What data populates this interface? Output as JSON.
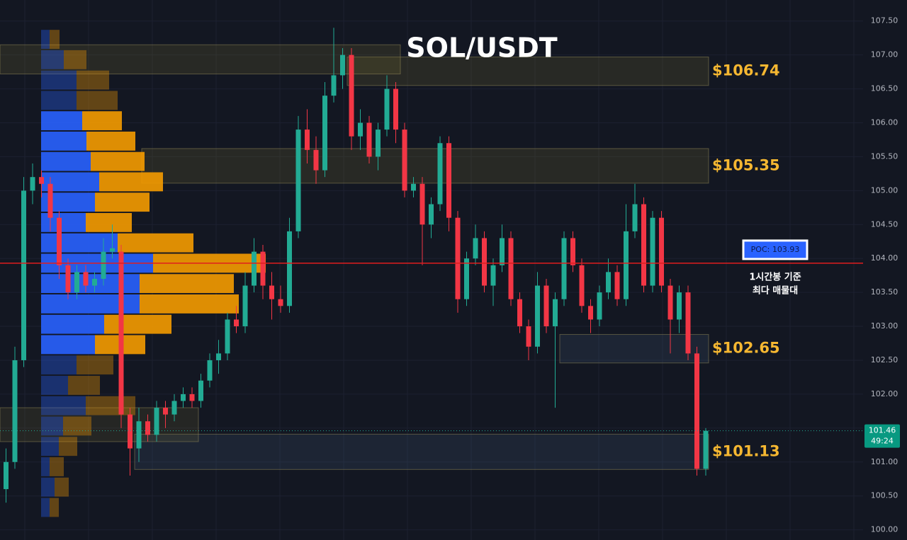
{
  "chart_data": {
    "type": "candlestick",
    "title": "SOL/USDT",
    "ylim": [
      99.85,
      107.81
    ],
    "yticks": [
      {
        "value": 100,
        "label": "100.00"
      },
      {
        "value": 100.5,
        "label": "100.50"
      },
      {
        "value": 101,
        "label": "101.00"
      },
      {
        "value": 101.5,
        "label": "101.50"
      },
      {
        "value": 102,
        "label": "102.00"
      },
      {
        "value": 102.5,
        "label": "102.50"
      },
      {
        "value": 103,
        "label": "103.00"
      },
      {
        "value": 103.5,
        "label": "103.50"
      },
      {
        "value": 104,
        "label": "104.00"
      },
      {
        "value": 104.5,
        "label": "104.50"
      },
      {
        "value": 105,
        "label": "105.00"
      },
      {
        "value": 105.5,
        "label": "105.50"
      },
      {
        "value": 106,
        "label": "106.00"
      },
      {
        "value": 106.5,
        "label": "106.50"
      },
      {
        "value": 107,
        "label": "107.00"
      },
      {
        "value": 107.5,
        "label": "107.50"
      }
    ],
    "grid": true,
    "up_color": "#22ab94",
    "down_color": "#f23645",
    "candles": [
      [
        100.6,
        101.2,
        100.4,
        101.0
      ],
      [
        101.0,
        102.7,
        100.9,
        102.5
      ],
      [
        102.5,
        105.2,
        102.4,
        105.0
      ],
      [
        105.0,
        105.4,
        104.8,
        105.2
      ],
      [
        105.2,
        105.3,
        104.9,
        105.1
      ],
      [
        105.1,
        105.2,
        104.4,
        104.6
      ],
      [
        104.6,
        104.7,
        103.7,
        103.9
      ],
      [
        103.9,
        104.0,
        103.4,
        103.5
      ],
      [
        103.5,
        103.9,
        103.4,
        103.8
      ],
      [
        103.8,
        103.9,
        103.5,
        103.6
      ],
      [
        103.6,
        103.8,
        103.5,
        103.7
      ],
      [
        103.7,
        104.3,
        103.6,
        104.1
      ],
      [
        104.1,
        104.5,
        104.0,
        104.15
      ],
      [
        104.1,
        104.2,
        101.5,
        101.7
      ],
      [
        101.7,
        101.8,
        100.8,
        101.2
      ],
      [
        101.2,
        101.8,
        101.0,
        101.6
      ],
      [
        101.6,
        101.7,
        101.3,
        101.4
      ],
      [
        101.4,
        101.9,
        101.3,
        101.8
      ],
      [
        101.8,
        101.9,
        101.5,
        101.7
      ],
      [
        101.7,
        102.0,
        101.6,
        101.9
      ],
      [
        101.9,
        102.1,
        101.8,
        102.0
      ],
      [
        102.0,
        102.1,
        101.8,
        101.9
      ],
      [
        101.9,
        102.3,
        101.8,
        102.2
      ],
      [
        102.2,
        102.6,
        102.1,
        102.5
      ],
      [
        102.5,
        102.8,
        102.3,
        102.6
      ],
      [
        102.6,
        103.2,
        102.5,
        103.1
      ],
      [
        103.1,
        103.3,
        102.9,
        103.0
      ],
      [
        103.0,
        103.8,
        102.9,
        103.6
      ],
      [
        103.6,
        104.3,
        103.5,
        104.1
      ],
      [
        104.1,
        104.2,
        103.4,
        103.6
      ],
      [
        103.6,
        103.8,
        103.1,
        103.4
      ],
      [
        103.4,
        103.6,
        103.2,
        103.3
      ],
      [
        103.3,
        104.6,
        103.2,
        104.4
      ],
      [
        104.4,
        106.1,
        104.3,
        105.9
      ],
      [
        105.9,
        106.2,
        105.4,
        105.6
      ],
      [
        105.6,
        105.8,
        105.1,
        105.3
      ],
      [
        105.3,
        106.6,
        105.2,
        106.4
      ],
      [
        106.4,
        107.4,
        106.3,
        106.7
      ],
      [
        106.7,
        107.1,
        106.5,
        107.0
      ],
      [
        107.0,
        107.1,
        105.6,
        105.8
      ],
      [
        105.8,
        106.2,
        105.6,
        106.0
      ],
      [
        106.0,
        106.1,
        105.4,
        105.5
      ],
      [
        105.5,
        106.0,
        105.3,
        105.9
      ],
      [
        105.9,
        106.7,
        105.8,
        106.5
      ],
      [
        106.5,
        106.6,
        105.7,
        105.9
      ],
      [
        105.9,
        106.0,
        104.9,
        105.0
      ],
      [
        105.0,
        105.2,
        104.9,
        105.1
      ],
      [
        105.1,
        105.2,
        103.9,
        104.5
      ],
      [
        104.5,
        104.9,
        104.3,
        104.8
      ],
      [
        104.8,
        105.8,
        104.7,
        105.7
      ],
      [
        105.7,
        105.8,
        104.4,
        104.6
      ],
      [
        104.6,
        104.7,
        103.2,
        103.4
      ],
      [
        103.4,
        104.1,
        103.3,
        104.0
      ],
      [
        104.0,
        104.5,
        103.9,
        104.3
      ],
      [
        104.3,
        104.4,
        103.5,
        103.6
      ],
      [
        103.6,
        104.0,
        103.3,
        103.9
      ],
      [
        103.9,
        104.5,
        103.8,
        104.3
      ],
      [
        104.3,
        104.4,
        103.3,
        103.4
      ],
      [
        103.4,
        103.5,
        102.9,
        103.0
      ],
      [
        103.0,
        103.1,
        102.5,
        102.7
      ],
      [
        102.7,
        103.8,
        102.6,
        103.6
      ],
      [
        103.6,
        103.7,
        102.9,
        103.0
      ],
      [
        103.0,
        103.5,
        101.8,
        103.4
      ],
      [
        103.4,
        104.4,
        103.3,
        104.3
      ],
      [
        104.3,
        104.4,
        103.8,
        103.9
      ],
      [
        103.9,
        104.0,
        103.2,
        103.3
      ],
      [
        103.3,
        103.4,
        102.9,
        103.1
      ],
      [
        103.1,
        103.6,
        103.0,
        103.5
      ],
      [
        103.5,
        104.0,
        103.4,
        103.8
      ],
      [
        103.8,
        103.9,
        103.3,
        103.4
      ],
      [
        103.4,
        104.8,
        103.3,
        104.4
      ],
      [
        104.4,
        105.1,
        104.3,
        104.8
      ],
      [
        104.8,
        104.9,
        103.5,
        103.6
      ],
      [
        103.6,
        104.7,
        103.5,
        104.6
      ],
      [
        104.6,
        104.7,
        103.5,
        103.6
      ],
      [
        103.6,
        103.7,
        102.6,
        103.1
      ],
      [
        103.1,
        103.6,
        102.9,
        103.5
      ],
      [
        103.5,
        103.6,
        102.5,
        102.6
      ],
      [
        102.6,
        102.7,
        100.8,
        100.9
      ],
      [
        100.9,
        101.5,
        100.8,
        101.46
      ]
    ],
    "volume_profile": {
      "row_height": 0.28,
      "value_area": [
        102.45,
        106.05
      ],
      "buy_color": "#2962ff",
      "sell_color": "#f59b00",
      "rows": [
        {
          "price": 107.23,
          "buy": 12,
          "sell": 14
        },
        {
          "price": 106.93,
          "buy": 32,
          "sell": 32
        },
        {
          "price": 106.63,
          "buy": 50,
          "sell": 46
        },
        {
          "price": 106.33,
          "buy": 50,
          "sell": 58
        },
        {
          "price": 106.03,
          "buy": 58,
          "sell": 56
        },
        {
          "price": 105.73,
          "buy": 64,
          "sell": 69
        },
        {
          "price": 105.43,
          "buy": 70,
          "sell": 76
        },
        {
          "price": 105.13,
          "buy": 82,
          "sell": 90
        },
        {
          "price": 104.83,
          "buy": 76,
          "sell": 77
        },
        {
          "price": 104.53,
          "buy": 63,
          "sell": 65
        },
        {
          "price": 104.23,
          "buy": 108,
          "sell": 107
        },
        {
          "price": 103.93,
          "buy": 158,
          "sell": 159
        },
        {
          "price": 103.63,
          "buy": 139,
          "sell": 133
        },
        {
          "price": 103.33,
          "buy": 139,
          "sell": 140
        },
        {
          "price": 103.03,
          "buy": 89,
          "sell": 95
        },
        {
          "price": 102.73,
          "buy": 76,
          "sell": 71
        },
        {
          "price": 102.43,
          "buy": 50,
          "sell": 52
        },
        {
          "price": 102.13,
          "buy": 38,
          "sell": 45
        },
        {
          "price": 101.83,
          "buy": 63,
          "sell": 70
        },
        {
          "price": 101.53,
          "buy": 31,
          "sell": 40
        },
        {
          "price": 101.23,
          "buy": 25,
          "sell": 26
        },
        {
          "price": 100.93,
          "buy": 12,
          "sell": 20
        },
        {
          "price": 100.63,
          "buy": 19,
          "sell": 20
        },
        {
          "price": 100.33,
          "buy": 12,
          "sell": 13
        }
      ]
    },
    "zones": [
      {
        "label": "$106.74",
        "top": 106.97,
        "bottom": 106.55
      },
      {
        "label": "$105.35",
        "top": 105.62,
        "bottom": 105.11
      },
      {
        "label": "$102.65",
        "top": 102.88,
        "bottom": 102.46
      },
      {
        "label": "$101.13",
        "top": 101.41,
        "bottom": 100.89
      },
      {
        "top": 107.15,
        "bottom": 106.72
      },
      {
        "top": 101.8,
        "bottom": 101.3
      }
    ],
    "poc": {
      "value": 103.93,
      "label": "POC: 103.93"
    },
    "annotation": [
      "1시간봉 기준",
      "최다 매물대"
    ],
    "last_price": 101.46,
    "countdown": "49:24"
  }
}
